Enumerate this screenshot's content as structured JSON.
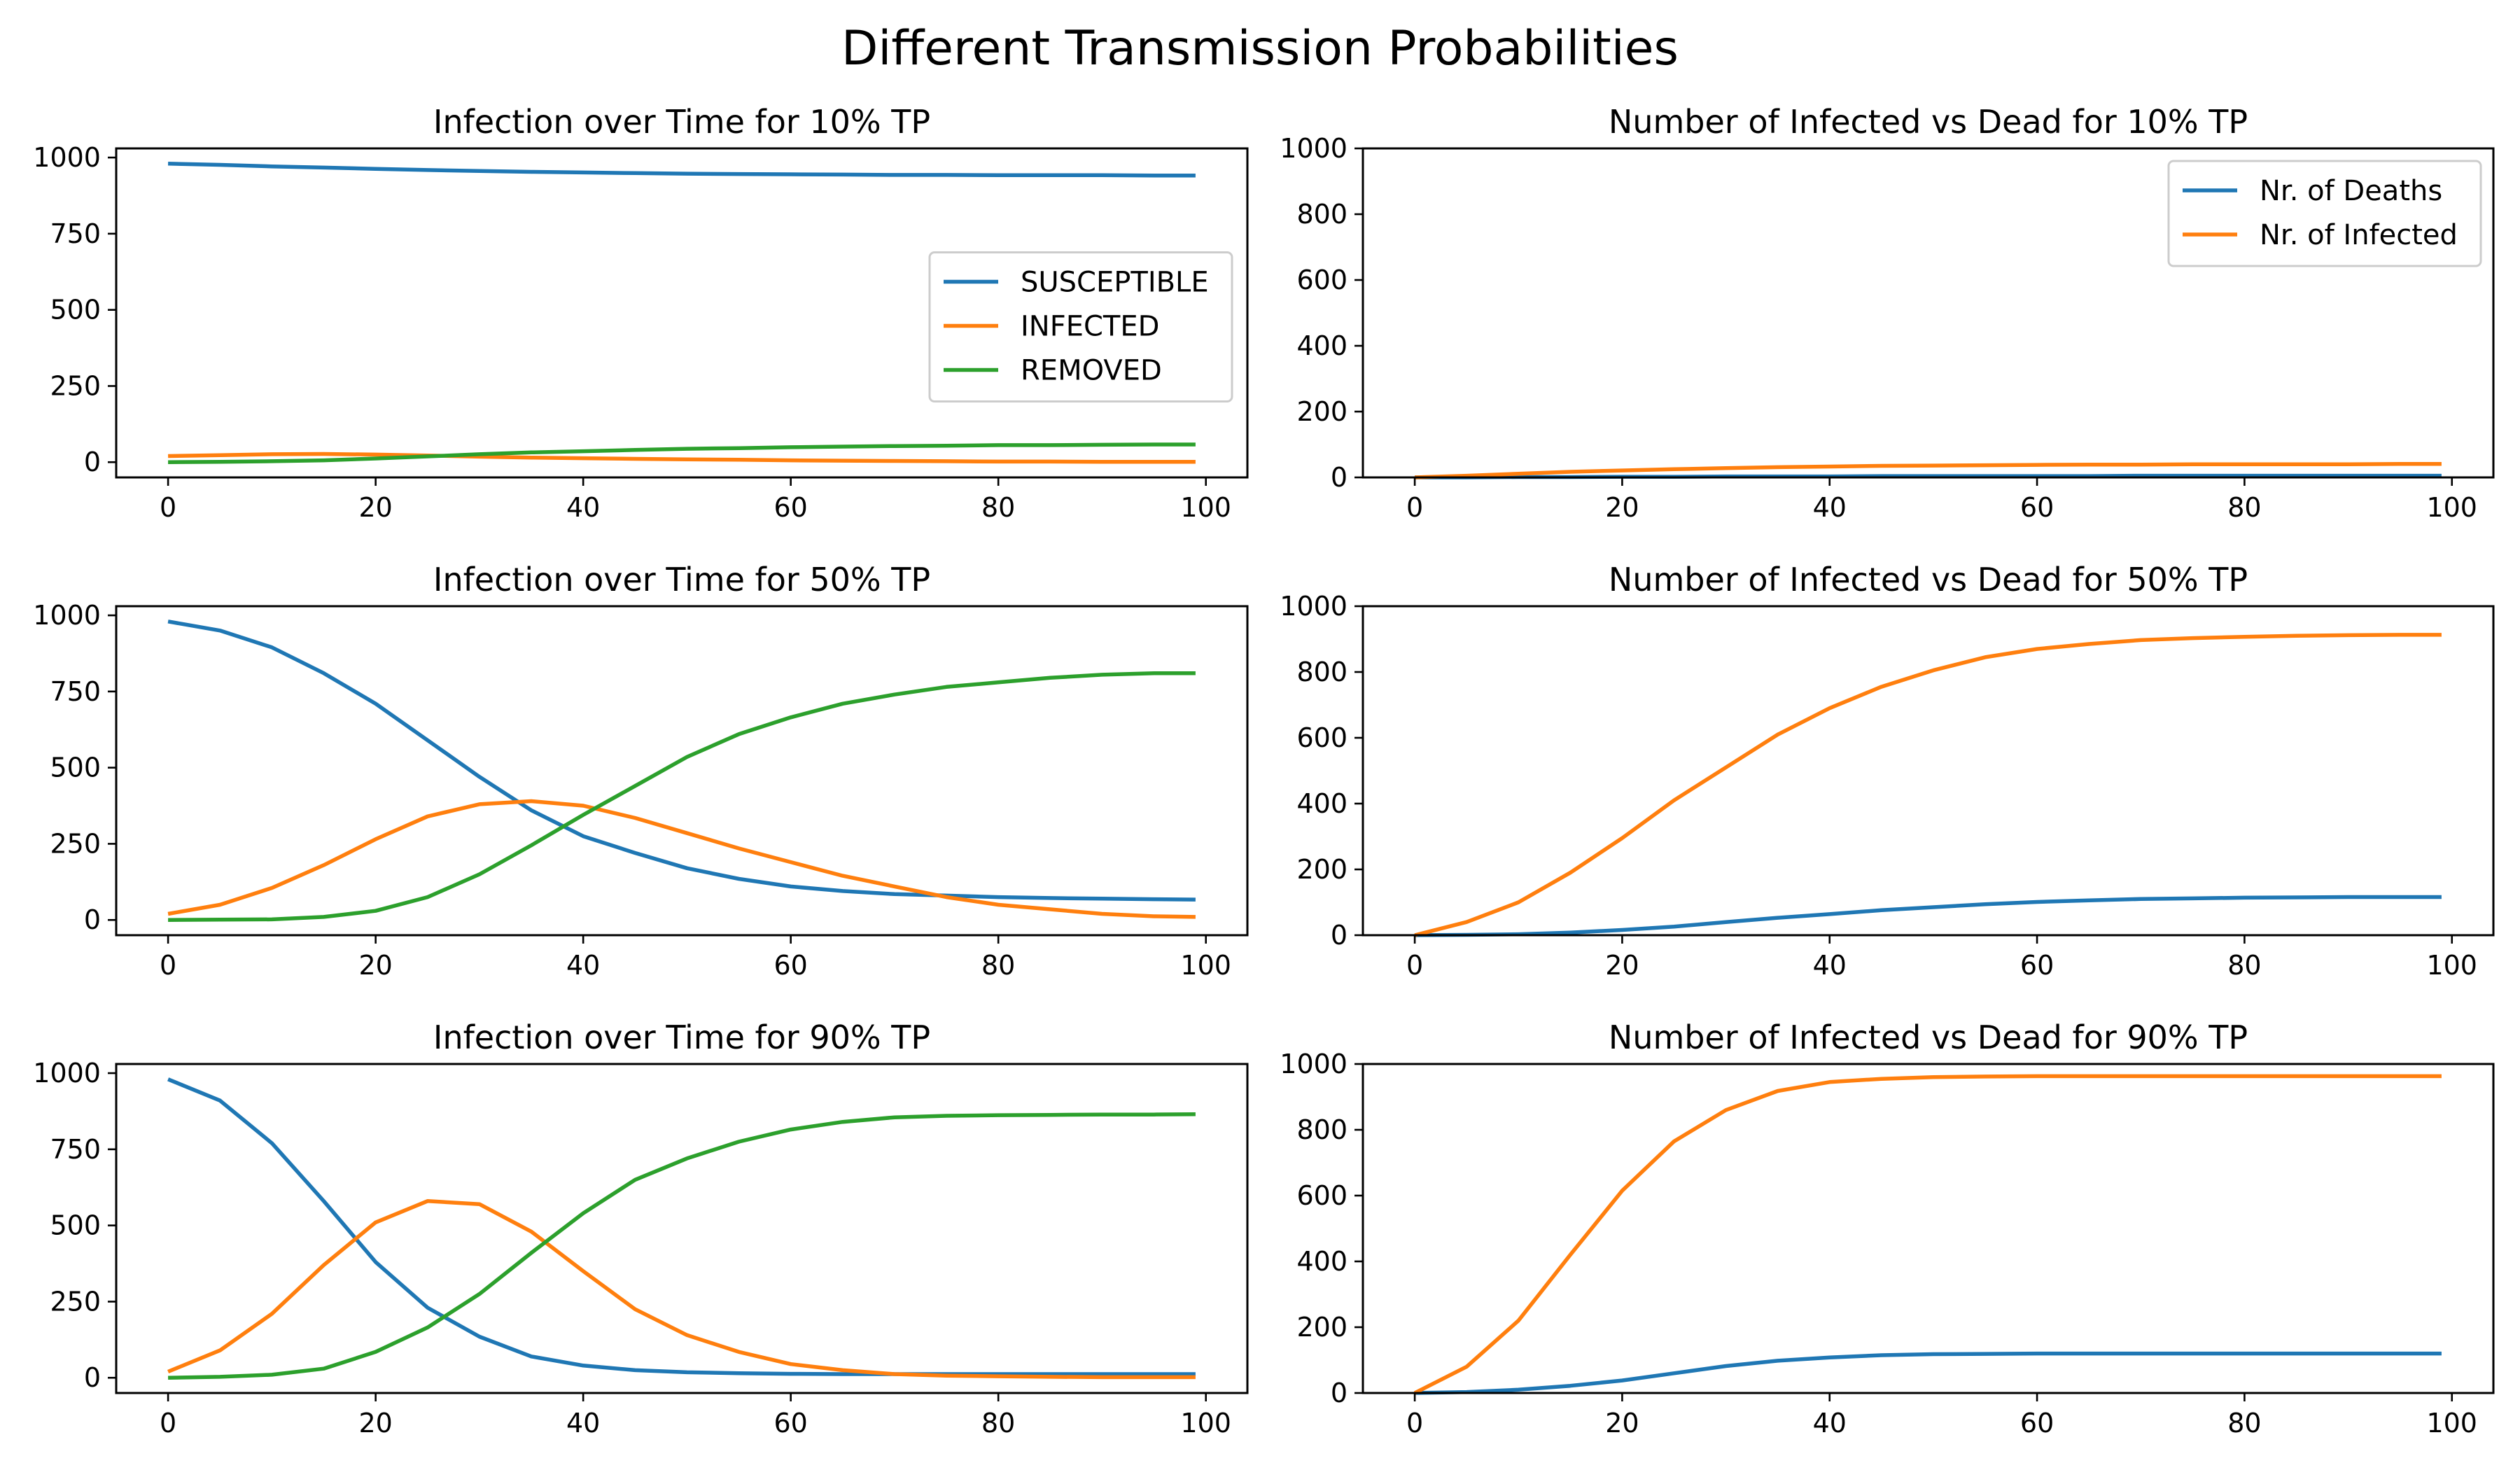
{
  "figure": {
    "title": "Different Transmission Probabilities"
  },
  "colors": {
    "blue": "#1f77b4",
    "orange": "#ff7f0e",
    "green": "#2ca02c"
  },
  "chart_data": [
    {
      "type": "line",
      "title": "Infection over Time for 10% TP",
      "xlabel": "",
      "ylabel": "",
      "xlim": [
        -5,
        104
      ],
      "ylim": [
        -50,
        1030
      ],
      "xticks": [
        0,
        20,
        40,
        60,
        80,
        100
      ],
      "yticks": [
        0,
        250,
        500,
        750,
        1000
      ],
      "grid": false,
      "legend": "center-right",
      "x": [
        0,
        5,
        10,
        15,
        20,
        25,
        30,
        35,
        40,
        45,
        50,
        55,
        60,
        65,
        70,
        75,
        80,
        85,
        90,
        95,
        99
      ],
      "series": [
        {
          "name": "SUSCEPTIBLE",
          "color": "blue",
          "values": [
            980,
            976,
            971,
            967,
            963,
            959,
            956,
            953,
            951,
            949,
            947,
            946,
            945,
            944,
            943,
            943,
            942,
            942,
            942,
            941,
            941
          ]
        },
        {
          "name": "INFECTED",
          "color": "orange",
          "values": [
            20,
            23,
            26,
            27,
            25,
            22,
            18,
            15,
            13,
            11,
            9,
            8,
            6,
            5,
            4,
            3,
            2,
            2,
            1,
            1,
            1
          ]
        },
        {
          "name": "REMOVED",
          "color": "green",
          "values": [
            0,
            1,
            3,
            6,
            12,
            19,
            26,
            32,
            36,
            40,
            44,
            46,
            49,
            51,
            53,
            54,
            56,
            56,
            57,
            58,
            58
          ]
        }
      ]
    },
    {
      "type": "line",
      "title": "Number of Infected vs Dead for 10% TP",
      "xlabel": "",
      "ylabel": "",
      "xlim": [
        -5,
        104
      ],
      "ylim": [
        0,
        1000
      ],
      "xticks": [
        0,
        20,
        40,
        60,
        80,
        100
      ],
      "yticks": [
        0,
        200,
        400,
        600,
        800,
        1000
      ],
      "grid": false,
      "legend": "upper-right",
      "x": [
        0,
        5,
        10,
        15,
        20,
        25,
        30,
        35,
        40,
        45,
        50,
        55,
        60,
        65,
        70,
        75,
        80,
        85,
        90,
        95,
        99
      ],
      "series": [
        {
          "name": "Nr. of Deaths",
          "color": "blue",
          "values": [
            0,
            0,
            1,
            1,
            2,
            2,
            3,
            3,
            3,
            4,
            4,
            4,
            4,
            4,
            5,
            5,
            5,
            5,
            5,
            5,
            5
          ]
        },
        {
          "name": "Nr. of Infected",
          "color": "orange",
          "values": [
            0,
            5,
            11,
            17,
            21,
            25,
            28,
            31,
            33,
            35,
            36,
            37,
            38,
            39,
            39,
            40,
            40,
            40,
            40,
            41,
            41
          ]
        }
      ]
    },
    {
      "type": "line",
      "title": "Infection over Time for 50% TP",
      "xlabel": "",
      "ylabel": "",
      "xlim": [
        -5,
        104
      ],
      "ylim": [
        -50,
        1030
      ],
      "xticks": [
        0,
        20,
        40,
        60,
        80,
        100
      ],
      "yticks": [
        0,
        250,
        500,
        750,
        1000
      ],
      "grid": false,
      "legend": "none",
      "x": [
        0,
        5,
        10,
        15,
        20,
        25,
        30,
        35,
        40,
        45,
        50,
        55,
        60,
        65,
        70,
        75,
        80,
        85,
        90,
        95,
        99
      ],
      "series": [
        {
          "name": "SUSCEPTIBLE",
          "color": "blue",
          "values": [
            980,
            950,
            895,
            810,
            710,
            590,
            470,
            360,
            275,
            220,
            170,
            135,
            110,
            95,
            85,
            80,
            75,
            72,
            70,
            68,
            67
          ]
        },
        {
          "name": "INFECTED",
          "color": "orange",
          "values": [
            20,
            50,
            105,
            180,
            265,
            340,
            380,
            390,
            375,
            335,
            285,
            235,
            190,
            145,
            110,
            75,
            50,
            35,
            20,
            12,
            10
          ]
        },
        {
          "name": "REMOVED",
          "color": "green",
          "values": [
            0,
            1,
            2,
            10,
            30,
            75,
            150,
            245,
            345,
            440,
            535,
            610,
            665,
            710,
            740,
            765,
            780,
            795,
            805,
            810,
            810
          ]
        }
      ]
    },
    {
      "type": "line",
      "title": "Number of Infected vs Dead for 50% TP",
      "xlabel": "",
      "ylabel": "",
      "xlim": [
        -5,
        104
      ],
      "ylim": [
        0,
        1000
      ],
      "xticks": [
        0,
        20,
        40,
        60,
        80,
        100
      ],
      "yticks": [
        0,
        200,
        400,
        600,
        800,
        1000
      ],
      "grid": false,
      "legend": "none",
      "x": [
        0,
        5,
        10,
        15,
        20,
        25,
        30,
        35,
        40,
        45,
        50,
        55,
        60,
        65,
        70,
        75,
        80,
        85,
        90,
        95,
        99
      ],
      "series": [
        {
          "name": "Nr. of Deaths",
          "color": "blue",
          "values": [
            0,
            1,
            3,
            8,
            16,
            26,
            40,
            53,
            64,
            76,
            85,
            94,
            101,
            106,
            110,
            112,
            114,
            115,
            116,
            116,
            116
          ]
        },
        {
          "name": "Nr. of Infected",
          "color": "orange",
          "values": [
            0,
            40,
            100,
            190,
            295,
            410,
            510,
            610,
            690,
            755,
            805,
            845,
            870,
            885,
            897,
            903,
            907,
            910,
            912,
            913,
            913
          ]
        }
      ]
    },
    {
      "type": "line",
      "title": "Infection over Time for 90% TP",
      "xlabel": "",
      "ylabel": "",
      "xlim": [
        -5,
        104
      ],
      "ylim": [
        -50,
        1030
      ],
      "xticks": [
        0,
        20,
        40,
        60,
        80,
        100
      ],
      "yticks": [
        0,
        250,
        500,
        750,
        1000
      ],
      "grid": false,
      "legend": "none",
      "x": [
        0,
        5,
        10,
        15,
        20,
        25,
        30,
        35,
        40,
        45,
        50,
        55,
        60,
        65,
        70,
        75,
        80,
        85,
        90,
        95,
        99
      ],
      "series": [
        {
          "name": "SUSCEPTIBLE",
          "color": "blue",
          "values": [
            980,
            910,
            770,
            580,
            380,
            230,
            135,
            70,
            40,
            25,
            18,
            15,
            13,
            12,
            12,
            12,
            12,
            12,
            12,
            12,
            12
          ]
        },
        {
          "name": "INFECTED",
          "color": "orange",
          "values": [
            20,
            90,
            210,
            370,
            510,
            580,
            570,
            480,
            350,
            225,
            140,
            85,
            45,
            25,
            12,
            7,
            5,
            3,
            2,
            2,
            2
          ]
        },
        {
          "name": "REMOVED",
          "color": "green",
          "values": [
            0,
            3,
            10,
            30,
            85,
            165,
            275,
            410,
            540,
            650,
            720,
            775,
            815,
            840,
            855,
            860,
            862,
            863,
            864,
            864,
            865
          ]
        }
      ]
    },
    {
      "type": "line",
      "title": "Number of Infected vs Dead for 90% TP",
      "xlabel": "",
      "ylabel": "",
      "xlim": [
        -5,
        104
      ],
      "ylim": [
        0,
        1000
      ],
      "xticks": [
        0,
        20,
        40,
        60,
        80,
        100
      ],
      "yticks": [
        0,
        200,
        400,
        600,
        800,
        1000
      ],
      "grid": false,
      "legend": "none",
      "x": [
        0,
        5,
        10,
        15,
        20,
        25,
        30,
        35,
        40,
        45,
        50,
        55,
        60,
        65,
        70,
        75,
        80,
        85,
        90,
        95,
        99
      ],
      "series": [
        {
          "name": "Nr. of Deaths",
          "color": "blue",
          "values": [
            0,
            3,
            10,
            22,
            38,
            60,
            82,
            98,
            108,
            115,
            118,
            119,
            120,
            120,
            120,
            120,
            120,
            120,
            120,
            120,
            120
          ]
        },
        {
          "name": "Nr. of Infected",
          "color": "orange",
          "values": [
            0,
            80,
            220,
            420,
            615,
            765,
            860,
            918,
            945,
            955,
            960,
            962,
            963,
            963,
            963,
            963,
            963,
            963,
            963,
            963,
            963
          ]
        }
      ]
    }
  ]
}
